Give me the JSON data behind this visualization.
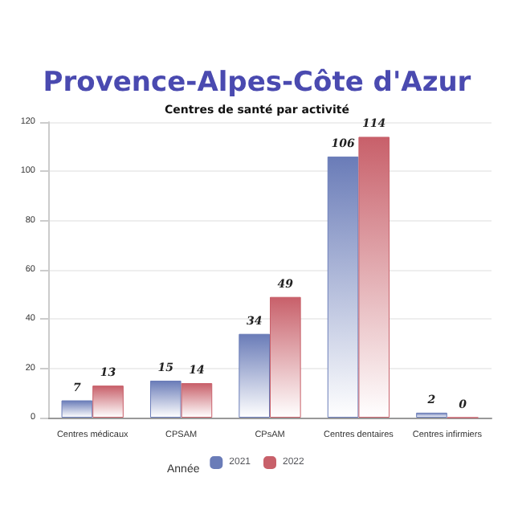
{
  "chart_data": {
    "type": "bar",
    "title": "Provence-Alpes-Côte d'Azur",
    "subtitle": "Centres de santé par activité",
    "legend_title": "Année",
    "categories": [
      "Centres médicaux",
      "CPSAM",
      "CPsAM",
      "Centres dentaires",
      "Centres infirmiers"
    ],
    "series": [
      {
        "name": "2021",
        "color": "#6a7cb8",
        "values": [
          7,
          15,
          34,
          106,
          2
        ]
      },
      {
        "name": "2022",
        "color": "#c8606a",
        "values": [
          13,
          14,
          49,
          114,
          0
        ]
      }
    ],
    "ylim": [
      0,
      120
    ],
    "yticks": [
      0,
      20,
      40,
      60,
      80,
      100,
      120
    ],
    "grid": "y",
    "legend": "bottom",
    "data_labels": true
  }
}
